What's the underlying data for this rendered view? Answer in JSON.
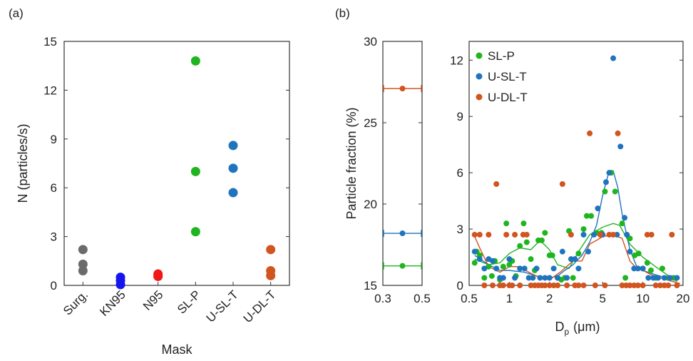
{
  "colors": {
    "Surg.": "#6b6b6b",
    "KN95": "#1515f0",
    "N95": "#f01818",
    "SL-P": "#1fb51f",
    "U-SL-T": "#1f74bd",
    "U-DL-T": "#d2541e",
    "axis": "#333333"
  },
  "chart_data": [
    {
      "panel_label": "(a)",
      "type": "scatter",
      "categories": [
        "Surg.",
        "KN95",
        "N95",
        "SL-P",
        "U-SL-T",
        "U-DL-T"
      ],
      "series": [
        {
          "category": "Surg.",
          "values": [
            2.2,
            1.3,
            0.9
          ]
        },
        {
          "category": "KN95",
          "values": [
            0.5,
            0.3,
            0.05
          ]
        },
        {
          "category": "N95",
          "values": [
            0.7,
            0.6,
            0.55
          ]
        },
        {
          "category": "SL-P",
          "values": [
            13.8,
            7.0,
            3.3
          ]
        },
        {
          "category": "U-SL-T",
          "values": [
            8.6,
            7.2,
            5.7
          ]
        },
        {
          "category": "U-DL-T",
          "values": [
            2.2,
            0.9,
            0.6
          ]
        }
      ],
      "xlabel": "Mask",
      "ylabel": "N (particles/s)",
      "ylim": [
        0,
        15
      ],
      "yticks": [
        0,
        3,
        6,
        9,
        12,
        15
      ],
      "grid": false
    },
    {
      "panel_label": "(b)",
      "type": "scatter",
      "ylabel": "Particle fraction (%)",
      "xlim": [
        0.3,
        0.5
      ],
      "ylim": [
        15,
        30
      ],
      "xticks": [
        0.3,
        0.5
      ],
      "yticks": [
        15,
        20,
        25,
        30
      ],
      "points": [
        {
          "series": "U-DL-T",
          "x": 0.4,
          "y": 27.1,
          "xerr": [
            0.3,
            0.5
          ]
        },
        {
          "series": "U-SL-T",
          "x": 0.4,
          "y": 18.2,
          "xerr": [
            0.3,
            0.5
          ]
        },
        {
          "series": "SL-P",
          "x": 0.4,
          "y": 16.2,
          "xerr": [
            0.3,
            0.5
          ]
        }
      ]
    },
    {
      "type": "scatter",
      "xlabel_main": "D",
      "xlabel_sub": "p",
      "xlabel_unit": "(μm)",
      "xscale": "log",
      "xlim": [
        0.5,
        20
      ],
      "ylim": [
        0,
        13
      ],
      "xticks": [
        0.5,
        1,
        2,
        5,
        10,
        20
      ],
      "xtick_labels": [
        "0.5",
        "1",
        "2",
        "5",
        "10",
        "20"
      ],
      "yticks": [
        0,
        3,
        6,
        9,
        12
      ],
      "legend_position": "top-left",
      "series": [
        {
          "name": "SL-P",
          "points": [
            [
              0.55,
              1.2
            ],
            [
              0.57,
              1.8
            ],
            [
              0.6,
              1.6
            ],
            [
              0.65,
              0.4
            ],
            [
              0.7,
              1.0
            ],
            [
              0.74,
              0.5
            ],
            [
              0.78,
              1.3
            ],
            [
              0.85,
              0.3
            ],
            [
              0.9,
              1.0
            ],
            [
              0.95,
              3.3
            ],
            [
              1.0,
              1.1
            ],
            [
              1.05,
              1.3
            ],
            [
              1.12,
              0.5
            ],
            [
              1.2,
              2.1
            ],
            [
              1.28,
              3.3
            ],
            [
              1.35,
              2.3
            ],
            [
              1.45,
              1.4
            ],
            [
              1.55,
              0.8
            ],
            [
              1.65,
              2.4
            ],
            [
              1.75,
              2.4
            ],
            [
              1.85,
              2.8
            ],
            [
              2.0,
              1.6
            ],
            [
              2.1,
              1.6
            ],
            [
              2.3,
              0.4
            ],
            [
              2.45,
              0.3
            ],
            [
              2.6,
              0.4
            ],
            [
              2.8,
              2.9
            ],
            [
              3.0,
              0.4
            ],
            [
              3.3,
              1.7
            ],
            [
              3.6,
              3.0
            ],
            [
              3.8,
              3.7
            ],
            [
              4.1,
              3.7
            ],
            [
              4.5,
              2.8
            ],
            [
              4.9,
              2.8
            ],
            [
              5.2,
              5.0
            ],
            [
              5.8,
              6.0
            ],
            [
              6.2,
              5.0
            ],
            [
              7.0,
              3.3
            ],
            [
              7.4,
              0.4
            ],
            [
              8.0,
              2.5
            ],
            [
              8.7,
              1.6
            ],
            [
              9.3,
              1.7
            ],
            [
              10.0,
              0.9
            ],
            [
              10.8,
              1.2
            ],
            [
              11.5,
              0.8
            ],
            [
              12.5,
              0.4
            ],
            [
              14.0,
              0.9
            ],
            [
              15.5,
              0.4
            ],
            [
              17.0,
              0.4
            ]
          ],
          "trend": [
            [
              0.55,
              1.4
            ],
            [
              0.7,
              1.1
            ],
            [
              0.85,
              1.2
            ],
            [
              1.0,
              1.7
            ],
            [
              1.2,
              2.0
            ],
            [
              1.45,
              1.9
            ],
            [
              1.7,
              2.4
            ],
            [
              2.0,
              1.9
            ],
            [
              2.3,
              1.1
            ],
            [
              2.8,
              0.9
            ],
            [
              3.3,
              1.8
            ],
            [
              4.0,
              2.7
            ],
            [
              5.0,
              3.1
            ],
            [
              6.0,
              3.3
            ],
            [
              6.7,
              3.2
            ],
            [
              8.0,
              2.2
            ],
            [
              10.0,
              1.5
            ],
            [
              13.0,
              0.9
            ],
            [
              18.0,
              0.2
            ]
          ]
        },
        {
          "name": "U-SL-T",
          "points": [
            [
              0.55,
              1.8
            ],
            [
              0.6,
              1.4
            ],
            [
              0.65,
              0.9
            ],
            [
              0.7,
              1.4
            ],
            [
              0.75,
              1.3
            ],
            [
              0.8,
              0.9
            ],
            [
              0.85,
              0.4
            ],
            [
              0.9,
              0.4
            ],
            [
              1.0,
              1.4
            ],
            [
              1.1,
              0.4
            ],
            [
              1.2,
              0.9
            ],
            [
              1.3,
              0.9
            ],
            [
              1.4,
              0.4
            ],
            [
              1.5,
              0.4
            ],
            [
              1.6,
              0.9
            ],
            [
              1.7,
              0.4
            ],
            [
              1.85,
              0.4
            ],
            [
              2.0,
              0.4
            ],
            [
              2.15,
              0.9
            ],
            [
              2.3,
              0.4
            ],
            [
              2.5,
              1.8
            ],
            [
              2.7,
              0.4
            ],
            [
              2.9,
              1.4
            ],
            [
              3.1,
              1.4
            ],
            [
              3.3,
              0.9
            ],
            [
              3.6,
              2.7
            ],
            [
              3.9,
              1.8
            ],
            [
              4.3,
              2.7
            ],
            [
              4.6,
              4.1
            ],
            [
              5.0,
              2.7
            ],
            [
              5.3,
              5.5
            ],
            [
              5.6,
              6.0
            ],
            [
              6.0,
              12.1
            ],
            [
              6.4,
              2.7
            ],
            [
              6.8,
              7.4
            ],
            [
              7.3,
              3.6
            ],
            [
              7.6,
              2.7
            ],
            [
              8.0,
              1.8
            ],
            [
              8.6,
              0.9
            ],
            [
              9.2,
              0.9
            ],
            [
              10.0,
              0.9
            ],
            [
              11.0,
              0.4
            ],
            [
              12.0,
              0.4
            ],
            [
              13.0,
              0.4
            ],
            [
              14.5,
              0.4
            ],
            [
              16.0,
              0.4
            ],
            [
              18.0,
              0.4
            ]
          ],
          "trend": [
            [
              0.55,
              1.6
            ],
            [
              0.7,
              1.1
            ],
            [
              0.85,
              0.8
            ],
            [
              1.0,
              0.8
            ],
            [
              1.3,
              0.7
            ],
            [
              1.6,
              0.5
            ],
            [
              2.0,
              0.4
            ],
            [
              2.3,
              0.5
            ],
            [
              2.6,
              0.8
            ],
            [
              3.0,
              1.1
            ],
            [
              3.5,
              1.6
            ],
            [
              4.0,
              2.3
            ],
            [
              4.5,
              3.2
            ],
            [
              5.0,
              4.8
            ],
            [
              5.5,
              5.9
            ],
            [
              6.0,
              6.1
            ],
            [
              6.5,
              5.2
            ],
            [
              7.0,
              3.8
            ],
            [
              8.0,
              1.9
            ],
            [
              9.0,
              1.0
            ],
            [
              10.0,
              0.8
            ],
            [
              12.0,
              0.6
            ],
            [
              15.0,
              0.4
            ],
            [
              18.0,
              0.3
            ]
          ]
        },
        {
          "name": "U-DL-T",
          "points": [
            [
              0.55,
              2.7
            ],
            [
              0.6,
              2.7
            ],
            [
              0.65,
              0.0
            ],
            [
              0.7,
              2.7
            ],
            [
              0.75,
              0.0
            ],
            [
              0.8,
              5.4
            ],
            [
              0.85,
              0.0
            ],
            [
              0.9,
              0.0
            ],
            [
              0.95,
              2.7
            ],
            [
              1.0,
              0.0
            ],
            [
              1.05,
              0.0
            ],
            [
              1.1,
              2.7
            ],
            [
              1.2,
              0.0
            ],
            [
              1.27,
              2.7
            ],
            [
              1.35,
              2.7
            ],
            [
              1.45,
              0.0
            ],
            [
              1.55,
              0.0
            ],
            [
              1.65,
              0.0
            ],
            [
              1.75,
              0.0
            ],
            [
              1.85,
              0.0
            ],
            [
              2.0,
              0.0
            ],
            [
              2.15,
              0.0
            ],
            [
              2.3,
              0.0
            ],
            [
              2.5,
              5.4
            ],
            [
              2.7,
              0.0
            ],
            [
              2.9,
              2.7
            ],
            [
              3.1,
              0.0
            ],
            [
              3.3,
              0.0
            ],
            [
              3.6,
              0.0
            ],
            [
              4.0,
              8.1
            ],
            [
              4.4,
              0.0
            ],
            [
              4.8,
              2.7
            ],
            [
              5.2,
              0.0
            ],
            [
              5.6,
              2.7
            ],
            [
              6.0,
              2.7
            ],
            [
              6.5,
              8.1
            ],
            [
              7.0,
              0.0
            ],
            [
              7.5,
              0.0
            ],
            [
              8.0,
              0.0
            ],
            [
              8.6,
              0.0
            ],
            [
              9.2,
              0.0
            ],
            [
              10.0,
              0.0
            ],
            [
              10.8,
              2.7
            ],
            [
              11.6,
              2.7
            ],
            [
              12.5,
              0.0
            ],
            [
              13.5,
              0.0
            ],
            [
              14.5,
              0.0
            ],
            [
              15.5,
              0.0
            ],
            [
              16.5,
              2.7
            ],
            [
              18.0,
              0.0
            ]
          ],
          "trend": [
            [
              0.55,
              2.6
            ],
            [
              0.6,
              2.0
            ],
            [
              0.7,
              1.0
            ],
            [
              0.85,
              0.7
            ],
            [
              1.0,
              1.0
            ],
            [
              1.2,
              1.0
            ],
            [
              1.4,
              0.7
            ],
            [
              1.7,
              0.4
            ],
            [
              2.0,
              0.3
            ],
            [
              2.4,
              0.7
            ],
            [
              3.0,
              1.3
            ],
            [
              3.5,
              1.3
            ],
            [
              4.0,
              2.2
            ],
            [
              4.5,
              2.4
            ],
            [
              5.0,
              2.6
            ],
            [
              6.0,
              2.7
            ],
            [
              7.0,
              2.5
            ],
            [
              8.0,
              1.3
            ],
            [
              9.0,
              0.9
            ],
            [
              10.0,
              0.8
            ],
            [
              12.0,
              0.5
            ],
            [
              15.0,
              0.3
            ],
            [
              19.0,
              0.1
            ]
          ]
        }
      ]
    }
  ]
}
